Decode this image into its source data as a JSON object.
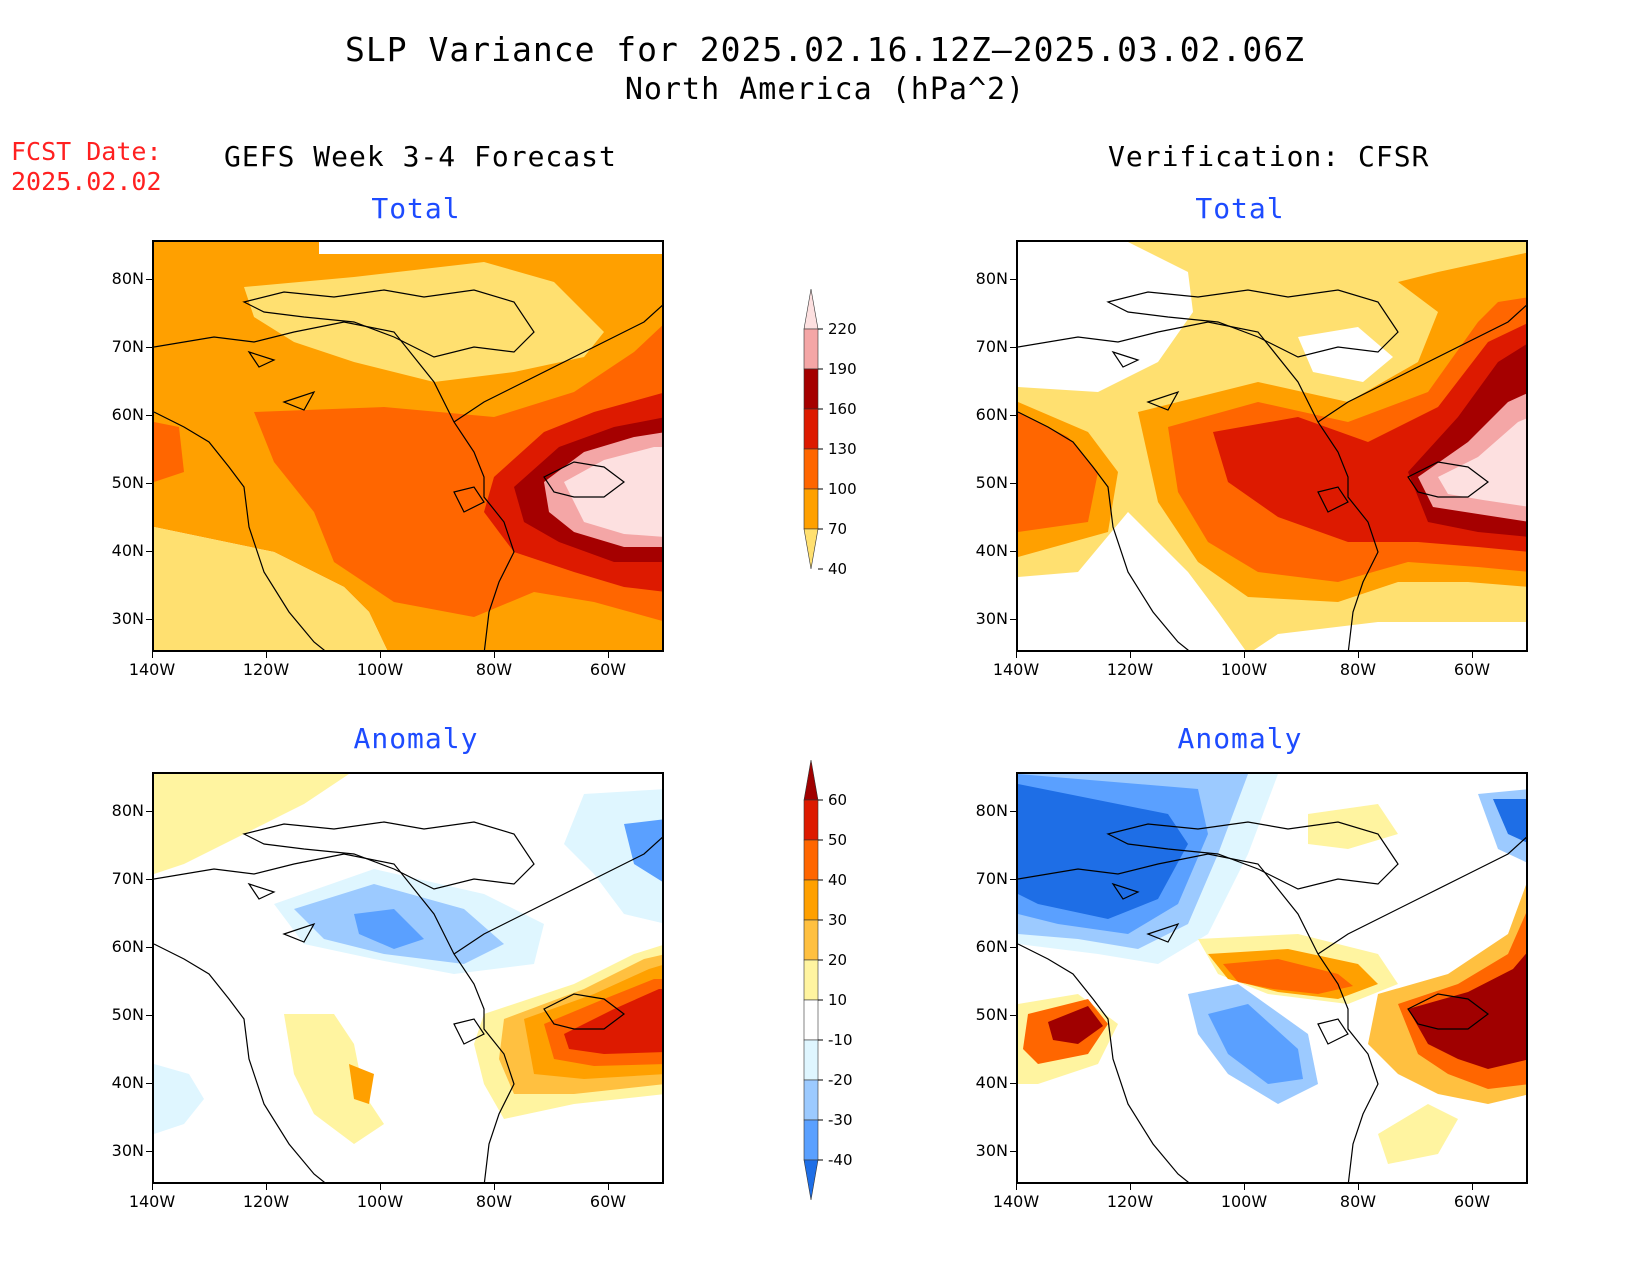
{
  "header": {
    "title_line1": "SLP Variance for 2025.02.16.12Z–2025.03.02.06Z",
    "title_line2": "North America (hPa^2)",
    "fcst_label": "FCST Date:",
    "fcst_date": "2025.02.02",
    "left_column": "GEFS Week 3-4 Forecast",
    "right_column": "Verification: CFSR"
  },
  "panels": {
    "total_title": "Total",
    "anomaly_title": "Anomaly"
  },
  "axes": {
    "lat_ticks": [
      "80N",
      "70N",
      "60N",
      "50N",
      "40N",
      "30N"
    ],
    "lon_ticks": [
      "140W",
      "120W",
      "100W",
      "80W",
      "60W"
    ]
  },
  "colorbar_total": {
    "levels": [
      "220",
      "190",
      "160",
      "130",
      "100",
      "70",
      "40"
    ],
    "colors": [
      "#fde0e0",
      "#f4a6a6",
      "#a50000",
      "#dd1a00",
      "#ff6600",
      "#ffa000",
      "#ffe070"
    ]
  },
  "colorbar_anomaly": {
    "levels": [
      "60",
      "50",
      "40",
      "30",
      "20",
      "10",
      "-10",
      "-20",
      "-30",
      "-40"
    ],
    "colors": [
      "#a00000",
      "#dd1a00",
      "#ff6600",
      "#ffa000",
      "#ffc040",
      "#fff4a0",
      "#ffffff",
      "#dff6ff",
      "#9ccaff",
      "#5aa0ff",
      "#1e6ee6"
    ]
  },
  "colors": {
    "title_blue": "#1d4bff",
    "fcst_red": "#ff2020"
  }
}
